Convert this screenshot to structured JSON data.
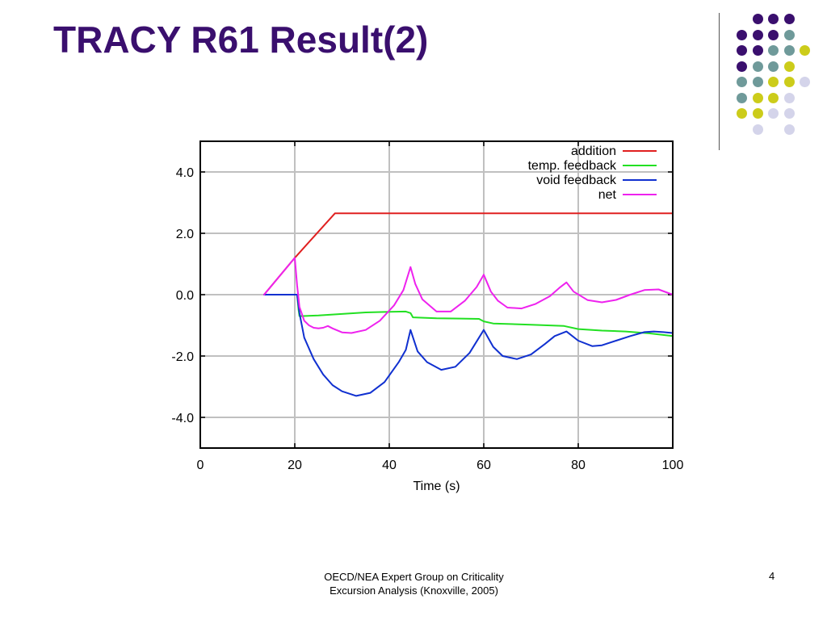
{
  "slide": {
    "title": "TRACY R61 Result(2)",
    "footer_line1": "OECD/NEA Expert Group on Criticality",
    "footer_line2": "Excursion Analysis (Knoxville, 2005)",
    "page_number": "4"
  },
  "decoration": {
    "dot_colors": {
      "purple": "#3a0f6e",
      "teal": "#6f9a9a",
      "yellow": "#cccc1a",
      "lavender": "#d4d4ea"
    }
  },
  "chart_data": {
    "type": "line",
    "xlabel": "Time (s)",
    "ylabel": "",
    "xlim": [
      0,
      100
    ],
    "ylim": [
      -5,
      5
    ],
    "xticks": [
      "0",
      "20",
      "40",
      "60",
      "80",
      "100"
    ],
    "yticks": [
      "4.0",
      "2.0",
      "0.0",
      "-2.0",
      "-4.0"
    ],
    "grid": true,
    "legend_position": "top-right",
    "series": [
      {
        "name": "addition",
        "color": "#e02020",
        "x": [
          13.5,
          20,
          28.5,
          100
        ],
        "y": [
          0,
          1.2,
          2.65,
          2.65
        ]
      },
      {
        "name": "temp. feedback",
        "color": "#22e022",
        "x": [
          13.5,
          20.5,
          20.8,
          21,
          25,
          30,
          35,
          40,
          43.5,
          44.5,
          45,
          50,
          55,
          59,
          60,
          62,
          70,
          77,
          80,
          85,
          90,
          95,
          100
        ],
        "y": [
          0,
          0,
          -0.5,
          -0.7,
          -0.68,
          -0.63,
          -0.58,
          -0.56,
          -0.55,
          -0.6,
          -0.74,
          -0.77,
          -0.78,
          -0.79,
          -0.87,
          -0.94,
          -0.98,
          -1.02,
          -1.12,
          -1.17,
          -1.2,
          -1.26,
          -1.35
        ]
      },
      {
        "name": "void  feedback",
        "color": "#1030d0",
        "x": [
          13.5,
          20.5,
          21,
          22,
          24,
          26,
          28,
          30,
          33,
          36,
          39,
          42,
          43.5,
          44.5,
          46,
          48,
          51,
          54,
          57,
          60,
          62,
          64,
          67,
          70,
          73,
          75,
          77.5,
          80,
          83,
          85,
          88,
          91,
          94,
          96,
          98,
          100
        ],
        "y": [
          0,
          0,
          -0.6,
          -1.4,
          -2.1,
          -2.6,
          -2.95,
          -3.15,
          -3.3,
          -3.2,
          -2.85,
          -2.2,
          -1.8,
          -1.15,
          -1.85,
          -2.2,
          -2.45,
          -2.35,
          -1.9,
          -1.15,
          -1.7,
          -2.0,
          -2.1,
          -1.95,
          -1.6,
          -1.35,
          -1.2,
          -1.5,
          -1.68,
          -1.65,
          -1.5,
          -1.35,
          -1.22,
          -1.2,
          -1.22,
          -1.25
        ]
      },
      {
        "name": "net",
        "color": "#ee22ee",
        "x": [
          13.5,
          20,
          20.5,
          21,
          22,
          23,
          24,
          25,
          26,
          27,
          28,
          30,
          32,
          35,
          38,
          41,
          43,
          44.5,
          45.5,
          47,
          50,
          53,
          56,
          58.5,
          60,
          61.5,
          63,
          65,
          68,
          71,
          74,
          76,
          77.5,
          79,
          82,
          85,
          88,
          91,
          94,
          97,
          100
        ],
        "y": [
          0,
          1.2,
          0.3,
          -0.4,
          -0.85,
          -1.0,
          -1.08,
          -1.1,
          -1.08,
          -1.02,
          -1.1,
          -1.23,
          -1.25,
          -1.15,
          -0.85,
          -0.35,
          0.15,
          0.9,
          0.35,
          -0.15,
          -0.55,
          -0.55,
          -0.2,
          0.25,
          0.65,
          0.1,
          -0.2,
          -0.42,
          -0.45,
          -0.3,
          -0.05,
          0.22,
          0.4,
          0.1,
          -0.18,
          -0.25,
          -0.17,
          0.0,
          0.15,
          0.17,
          0.0
        ]
      }
    ]
  }
}
